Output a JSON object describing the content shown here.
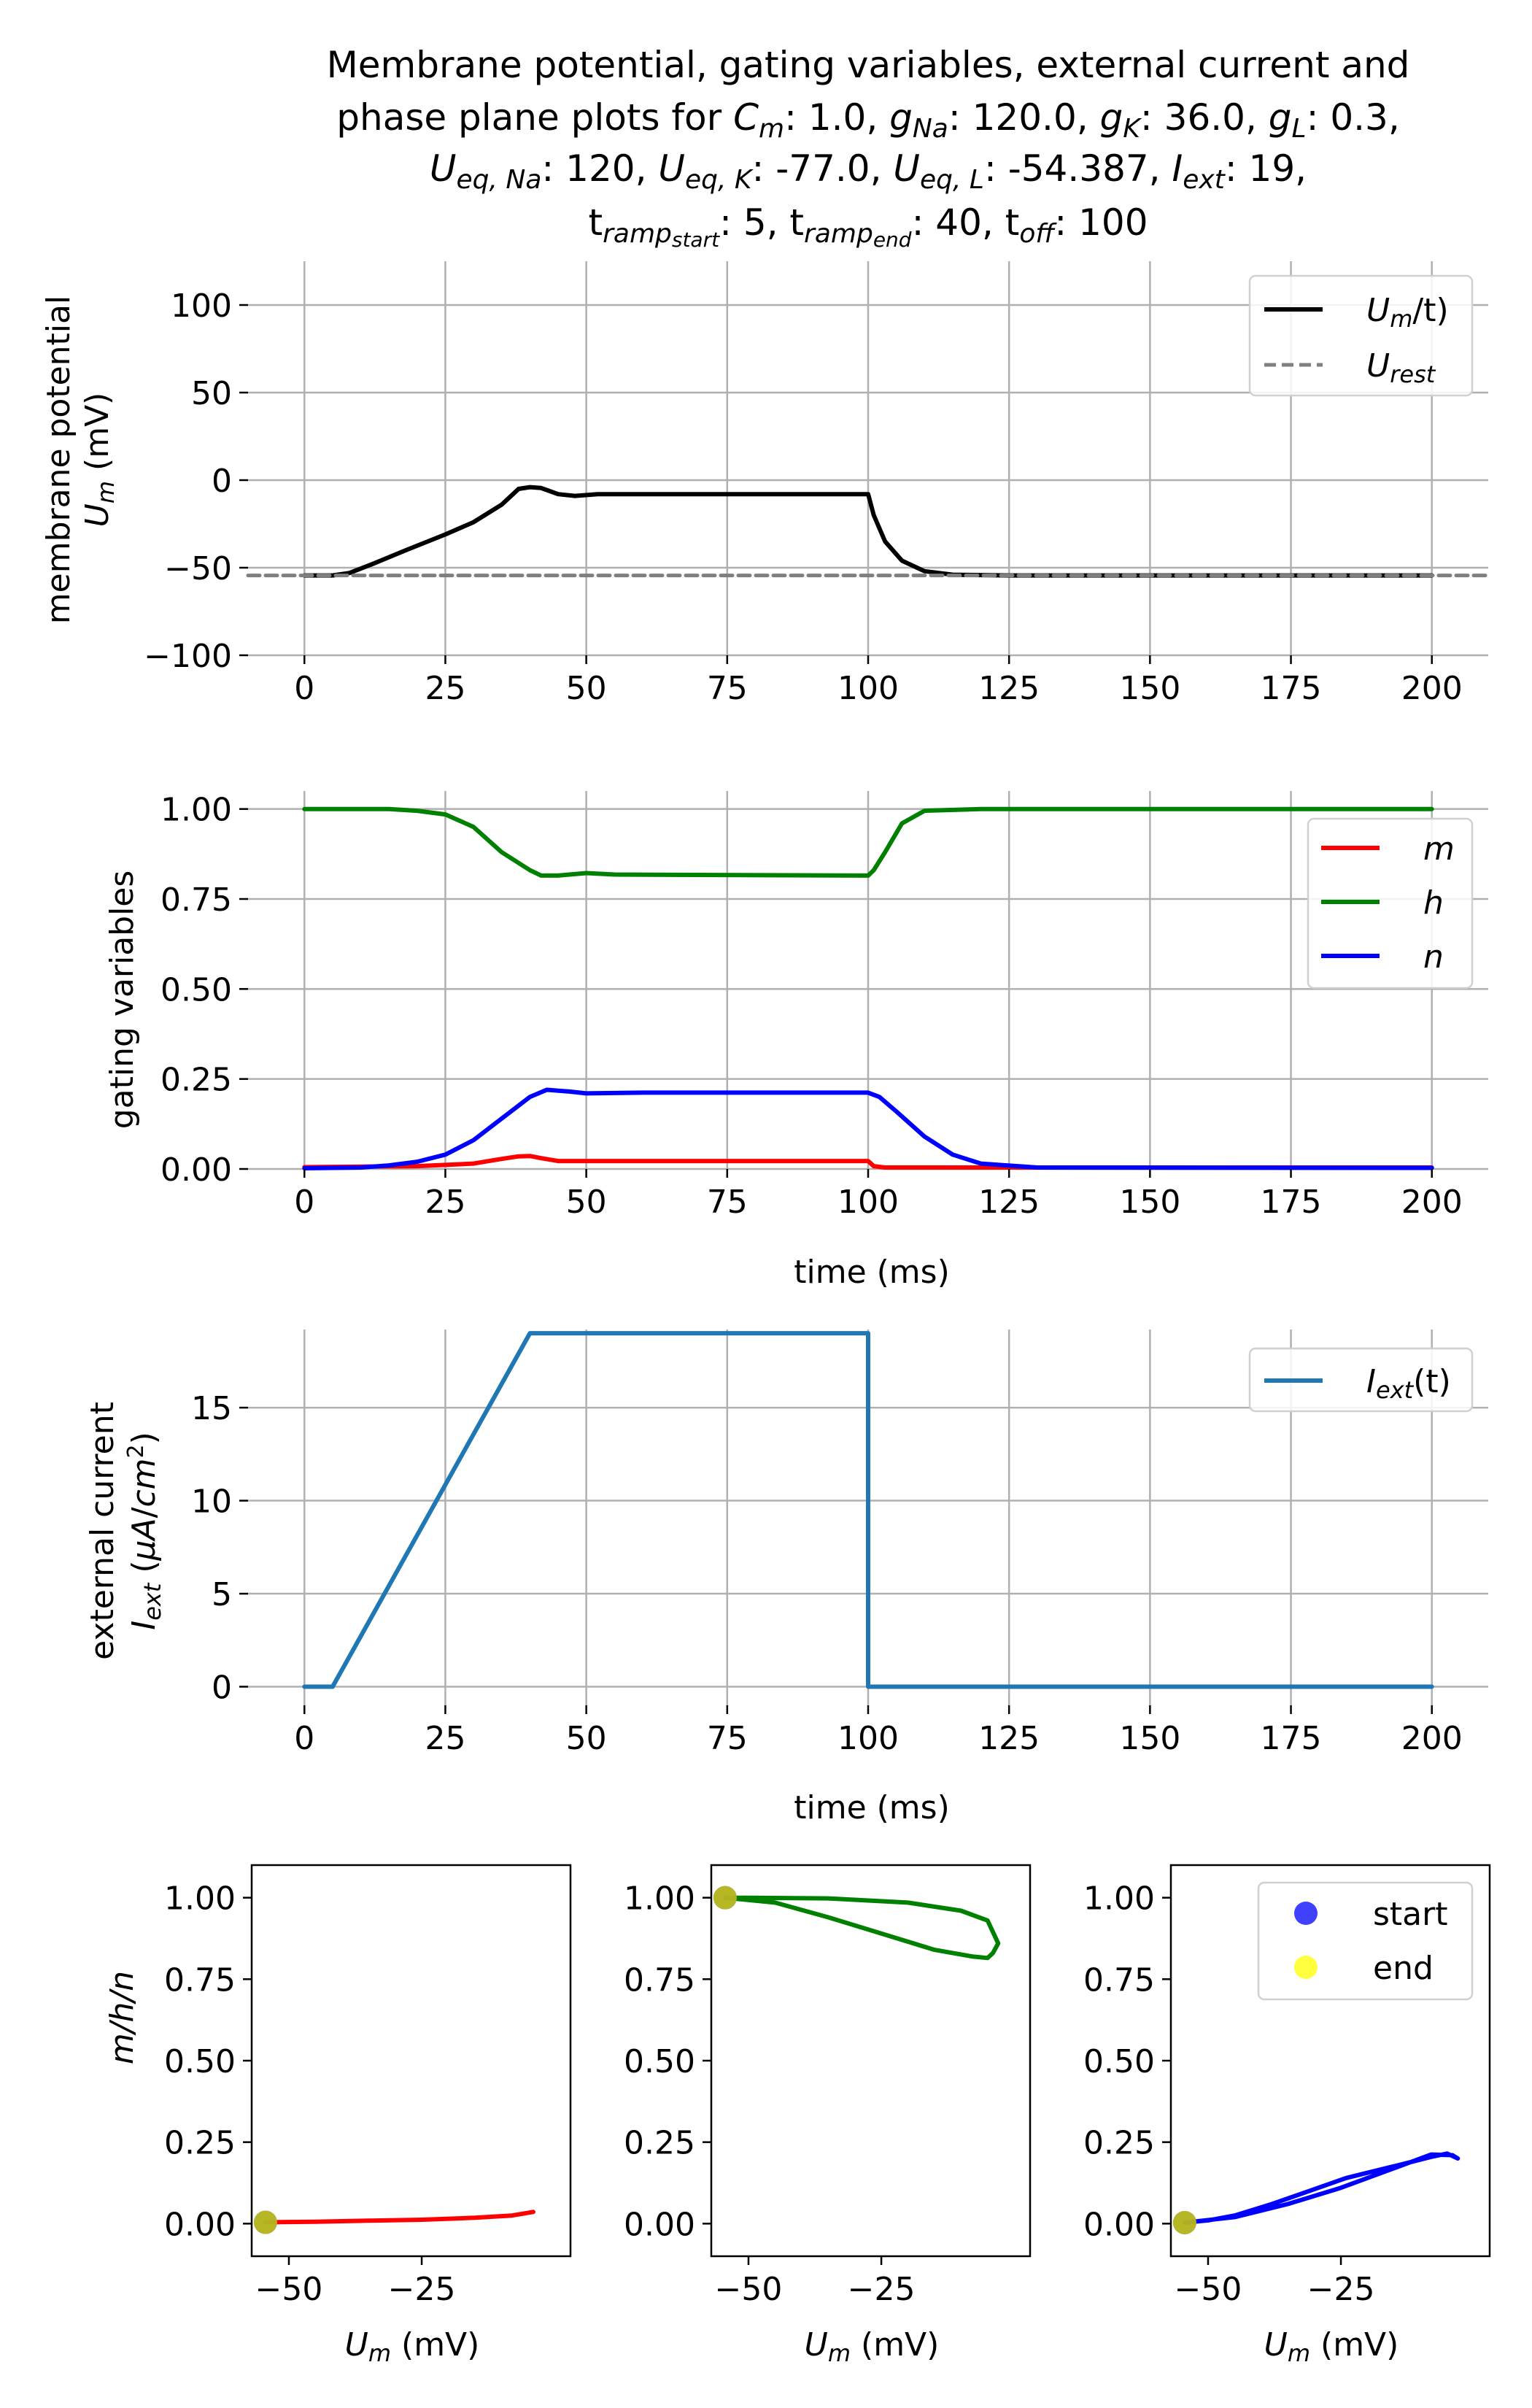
{
  "title": {
    "line1": "Membrane potential, gating variables, external current and",
    "line2": {
      "prefix": "phase plane plots for ",
      "cm_sym": "C",
      "cm_sub": "m",
      "cm_val": ": 1.0, ",
      "gna_sym": "g",
      "gna_sub": "Na",
      "gna_val": ": 120.0, ",
      "gk_sym": "g",
      "gk_sub": "K",
      "gk_val": ": 36.0, ",
      "gl_sym": "g",
      "gl_sub": "L",
      "gl_val": ": 0.3,"
    },
    "line3": {
      "una_sym": "U",
      "una_sub": "eq, Na",
      "una_val": ": 120, ",
      "uk_sym": "U",
      "uk_sub": "eq, K",
      "uk_val": ": -77.0, ",
      "ul_sym": "U",
      "ul_sub": "eq, L",
      "ul_val": ": -54.387, ",
      "iext_sym": "I",
      "iext_sub": "ext",
      "iext_val": ": 19,"
    },
    "line4": {
      "t1": "t",
      "t1_sub": "ramp",
      "t1_subsub": "start",
      "t1_val": ": 5, ",
      "t2": "t",
      "t2_sub": "ramp",
      "t2_subsub": "end",
      "t2_val": ": 40, ",
      "t3": "t",
      "t3_sub": "off",
      "t3_val": ": 100"
    }
  },
  "chart_data": [
    {
      "type": "line",
      "ylabel": {
        "line1": "membrane potential",
        "sym": "U",
        "sub": "m",
        "unit": " (mV)"
      },
      "xlim": [
        -10,
        210
      ],
      "ylim": [
        -100,
        125
      ],
      "xticks": [
        0,
        25,
        50,
        75,
        100,
        125,
        150,
        175,
        200
      ],
      "yticks": [
        -100,
        -50,
        0,
        50,
        100
      ],
      "grid": true,
      "legend": "top-right",
      "series": [
        {
          "name": {
            "sym": "U",
            "sub": "m",
            "rest": "/t)"
          },
          "color": "#000000",
          "style": "solid",
          "points": [
            [
              0,
              -54.4
            ],
            [
              5,
              -54.4
            ],
            [
              8,
              -53
            ],
            [
              12,
              -48
            ],
            [
              18,
              -40
            ],
            [
              25,
              -31
            ],
            [
              30,
              -24
            ],
            [
              35,
              -14
            ],
            [
              38,
              -5
            ],
            [
              40,
              -4
            ],
            [
              42,
              -4.5
            ],
            [
              45,
              -8
            ],
            [
              48,
              -9
            ],
            [
              52,
              -8
            ],
            [
              60,
              -8
            ],
            [
              75,
              -8
            ],
            [
              100,
              -8
            ],
            [
              101,
              -20
            ],
            [
              103,
              -35
            ],
            [
              106,
              -46
            ],
            [
              110,
              -52
            ],
            [
              115,
              -54
            ],
            [
              125,
              -54.4
            ],
            [
              200,
              -54.4
            ]
          ]
        },
        {
          "name": {
            "sym": "U",
            "sub": "rest",
            "rest": ""
          },
          "color": "#7f7f7f",
          "style": "dashed",
          "points": [
            [
              -10,
              -54.4
            ],
            [
              210,
              -54.4
            ]
          ]
        }
      ]
    },
    {
      "type": "line",
      "ylabel": "gating variables",
      "xlabel": "time (ms)",
      "xlim": [
        -10,
        210
      ],
      "ylim": [
        0,
        1.05
      ],
      "xticks": [
        0,
        25,
        50,
        75,
        100,
        125,
        150,
        175,
        200
      ],
      "yticks": [
        0.0,
        0.25,
        0.5,
        0.75,
        1.0
      ],
      "yticklabels": [
        "0.00",
        "0.25",
        "0.50",
        "0.75",
        "1.00"
      ],
      "grid": true,
      "legend": "top-right",
      "series": [
        {
          "name": "m",
          "color": "#ff0000",
          "points": [
            [
              0,
              0.005
            ],
            [
              20,
              0.008
            ],
            [
              30,
              0.015
            ],
            [
              35,
              0.028
            ],
            [
              38,
              0.035
            ],
            [
              40,
              0.036
            ],
            [
              42,
              0.03
            ],
            [
              45,
              0.022
            ],
            [
              50,
              0.022
            ],
            [
              100,
              0.022
            ],
            [
              101,
              0.008
            ],
            [
              103,
              0.004
            ],
            [
              110,
              0.004
            ],
            [
              200,
              0.004
            ]
          ]
        },
        {
          "name": "h",
          "color": "#008000",
          "points": [
            [
              0,
              1.0
            ],
            [
              15,
              1.0
            ],
            [
              20,
              0.995
            ],
            [
              25,
              0.985
            ],
            [
              30,
              0.95
            ],
            [
              35,
              0.88
            ],
            [
              40,
              0.83
            ],
            [
              42,
              0.815
            ],
            [
              45,
              0.815
            ],
            [
              50,
              0.822
            ],
            [
              55,
              0.818
            ],
            [
              100,
              0.815
            ],
            [
              101,
              0.83
            ],
            [
              103,
              0.88
            ],
            [
              106,
              0.96
            ],
            [
              110,
              0.995
            ],
            [
              120,
              1.0
            ],
            [
              200,
              1.0
            ]
          ]
        },
        {
          "name": "n",
          "color": "#0000ff",
          "points": [
            [
              0,
              0.002
            ],
            [
              10,
              0.004
            ],
            [
              15,
              0.01
            ],
            [
              20,
              0.02
            ],
            [
              25,
              0.04
            ],
            [
              30,
              0.08
            ],
            [
              35,
              0.14
            ],
            [
              40,
              0.2
            ],
            [
              43,
              0.22
            ],
            [
              47,
              0.215
            ],
            [
              50,
              0.21
            ],
            [
              60,
              0.212
            ],
            [
              100,
              0.212
            ],
            [
              102,
              0.2
            ],
            [
              105,
              0.16
            ],
            [
              110,
              0.09
            ],
            [
              115,
              0.04
            ],
            [
              120,
              0.015
            ],
            [
              130,
              0.004
            ],
            [
              200,
              0.003
            ]
          ]
        }
      ]
    },
    {
      "type": "line",
      "ylabel": {
        "line1": "external current",
        "sym": "I",
        "sub": "ext",
        "unit": " (μA/cm²)",
        "unit_pre": " (",
        "unit_mu": "μA",
        "unit_slash": "/",
        "unit_cm": "cm",
        "unit_sup": "2",
        "unit_post": ")"
      },
      "xlabel": "time (ms)",
      "xlim": [
        -10,
        210
      ],
      "ylim": [
        -1,
        19.2
      ],
      "xticks": [
        0,
        25,
        50,
        75,
        100,
        125,
        150,
        175,
        200
      ],
      "yticks": [
        0,
        5,
        10,
        15
      ],
      "grid": true,
      "legend": "top-right",
      "series": [
        {
          "name": {
            "sym": "I",
            "sub": "ext",
            "rest": "(t)"
          },
          "color": "#1f77b4",
          "points": [
            [
              0,
              0
            ],
            [
              5,
              0
            ],
            [
              40,
              19
            ],
            [
              100,
              19
            ],
            [
              100,
              0
            ],
            [
              200,
              0
            ]
          ]
        }
      ]
    },
    {
      "type": "scatter",
      "panel": "phase-m",
      "ylabel": {
        "text": "m/h/n"
      },
      "xlabel": {
        "sym": "U",
        "sub": "m",
        "unit": " (mV)"
      },
      "xlim": [
        -57,
        3
      ],
      "ylim": [
        -0.1,
        1.1
      ],
      "xticks": [
        -50,
        -25
      ],
      "xticklabels": [
        "−50",
        "−25"
      ],
      "yticks": [
        0.0,
        0.25,
        0.5,
        0.75,
        1.0
      ],
      "yticklabels": [
        "0.00",
        "0.25",
        "0.50",
        "0.75",
        "1.00"
      ],
      "grid": false,
      "series": [
        {
          "name": "m",
          "color": "#ff0000",
          "points": [
            [
              -54.4,
              0.004
            ],
            [
              -45,
              0.006
            ],
            [
              -35,
              0.009
            ],
            [
              -25,
              0.012
            ],
            [
              -15,
              0.018
            ],
            [
              -8,
              0.025
            ],
            [
              -4,
              0.036
            ]
          ]
        }
      ],
      "start": [
        -54.4,
        0.004
      ],
      "end": [
        -54.4,
        0.004
      ]
    },
    {
      "type": "scatter",
      "panel": "phase-h",
      "xlabel": {
        "sym": "U",
        "sub": "m",
        "unit": " (mV)"
      },
      "xlim": [
        -57,
        3
      ],
      "ylim": [
        -0.1,
        1.1
      ],
      "xticks": [
        -50,
        -25
      ],
      "xticklabels": [
        "−50",
        "−25"
      ],
      "yticks": [
        0.0,
        0.25,
        0.5,
        0.75,
        1.0
      ],
      "yticklabels": [
        "0.00",
        "0.25",
        "0.50",
        "0.75",
        "1.00"
      ],
      "grid": false,
      "series": [
        {
          "name": "h",
          "color": "#008000",
          "points": [
            [
              -54.4,
              1.0
            ],
            [
              -45,
              0.985
            ],
            [
              -35,
              0.94
            ],
            [
              -25,
              0.89
            ],
            [
              -15,
              0.84
            ],
            [
              -8,
              0.82
            ],
            [
              -5,
              0.815
            ],
            [
              -4,
              0.83
            ],
            [
              -3,
              0.86
            ],
            [
              -5,
              0.93
            ],
            [
              -10,
              0.96
            ],
            [
              -20,
              0.985
            ],
            [
              -35,
              0.998
            ],
            [
              -50,
              1.0
            ],
            [
              -54.4,
              1.0
            ]
          ]
        }
      ],
      "start": [
        -54.4,
        1.0
      ],
      "end": [
        -54.4,
        1.0
      ]
    },
    {
      "type": "scatter",
      "panel": "phase-n",
      "xlabel": {
        "sym": "U",
        "sub": "m",
        "unit": " (mV)"
      },
      "xlim": [
        -57,
        3
      ],
      "ylim": [
        -0.1,
        1.1
      ],
      "xticks": [
        -50,
        -25
      ],
      "xticklabels": [
        "−50",
        "−25"
      ],
      "yticks": [
        0.0,
        0.25,
        0.5,
        0.75,
        1.0
      ],
      "yticklabels": [
        "0.00",
        "0.25",
        "0.50",
        "0.75",
        "1.00"
      ],
      "grid": false,
      "legend": "top-right",
      "legend_entries": [
        {
          "label": "start",
          "color": "#0000ff"
        },
        {
          "label": "end",
          "color": "#ffff00"
        }
      ],
      "series": [
        {
          "name": "n",
          "color": "#0000ff",
          "points": [
            [
              -54.4,
              0.003
            ],
            [
              -50,
              0.01
            ],
            [
              -45,
              0.025
            ],
            [
              -38,
              0.06
            ],
            [
              -31,
              0.1
            ],
            [
              -24,
              0.14
            ],
            [
              -14,
              0.18
            ],
            [
              -8,
              0.205
            ],
            [
              -5,
              0.215
            ],
            [
              -3,
              0.2
            ],
            [
              -4,
              0.21
            ],
            [
              -8,
              0.212
            ],
            [
              -15,
              0.17
            ],
            [
              -25,
              0.11
            ],
            [
              -35,
              0.06
            ],
            [
              -45,
              0.02
            ],
            [
              -54.4,
              0.003
            ]
          ]
        }
      ],
      "start": [
        -54.4,
        0.003
      ],
      "end": [
        -54.4,
        0.003
      ]
    }
  ]
}
